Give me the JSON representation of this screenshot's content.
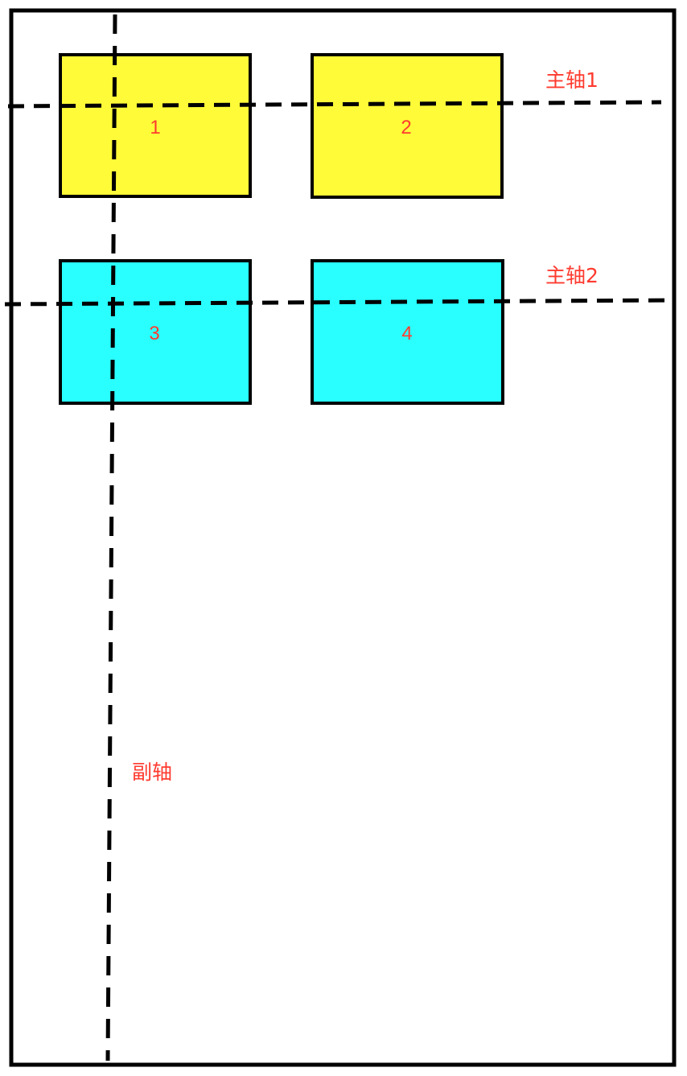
{
  "boxes": [
    {
      "label": "1",
      "fill": "#fffb38"
    },
    {
      "label": "2",
      "fill": "#fffb38"
    },
    {
      "label": "3",
      "fill": "#29ffff"
    },
    {
      "label": "4",
      "fill": "#29ffff"
    }
  ],
  "axes": {
    "main_axis_1": "主轴1",
    "main_axis_2": "主轴2",
    "cross_axis": "副轴"
  },
  "colors": {
    "outline": "#000000",
    "label_text": "#ff3b2f",
    "row1_fill": "#fffb38",
    "row2_fill": "#29ffff",
    "background": "#ffffff"
  }
}
